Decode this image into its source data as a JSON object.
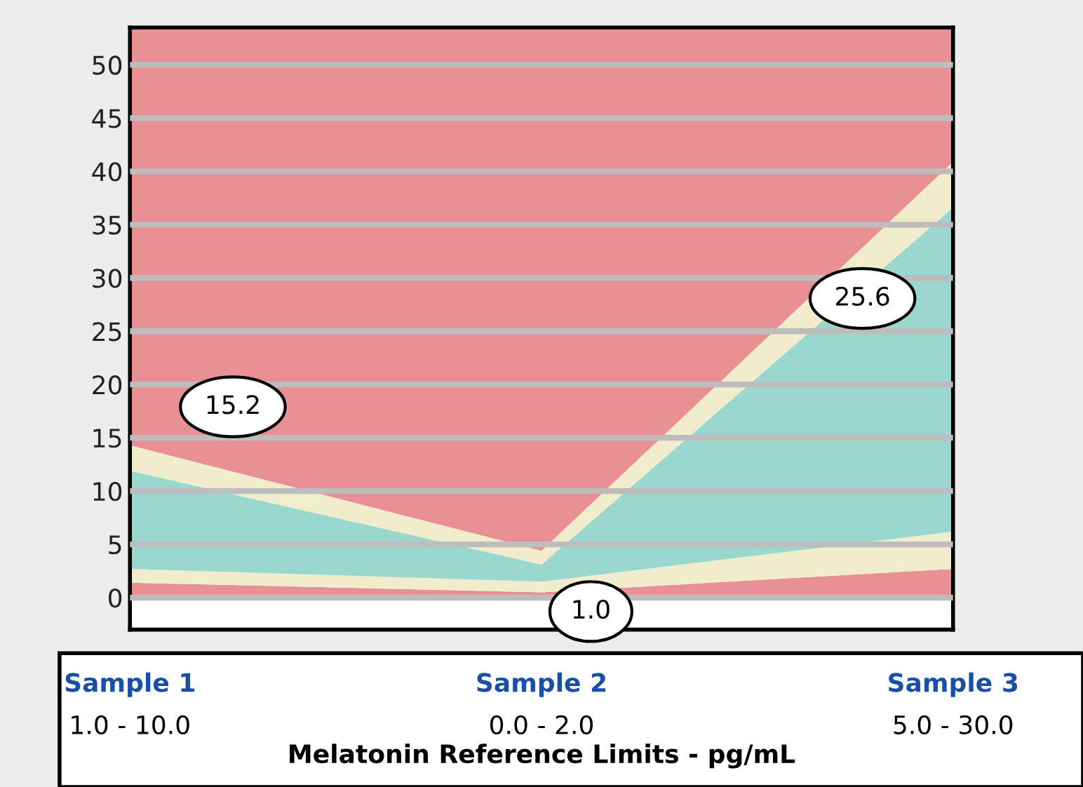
{
  "chart_data": {
    "type": "area",
    "stacked": true,
    "categories": [
      "Sample 1",
      "Sample 2",
      "Sample 3"
    ],
    "xlabel": "Melatonin Reference Limits - pg/mL",
    "series": [
      {
        "color": "#e99095",
        "values": [
          1.4,
          0.5,
          2.7
        ]
      },
      {
        "color": "#efedcb",
        "values": [
          1.3,
          1.0,
          3.5
        ]
      },
      {
        "color": "#9ad8cf",
        "values": [
          9.2,
          1.6,
          30.4
        ]
      },
      {
        "color": "#efedcb",
        "values": [
          2.4,
          1.3,
          4.3
        ]
      },
      {
        "color": "#e99095",
        "values": [
          39.2,
          49.1,
          12.6
        ]
      }
    ],
    "ylim": [
      -3,
      53.5
    ],
    "yticks": [
      0,
      5,
      10,
      15,
      20,
      25,
      30,
      35,
      40,
      45,
      50
    ],
    "grid": "y",
    "legend": false,
    "annotations": [
      "15.2",
      "1.0",
      "25.6",
      "1.0 - 10.0",
      "0.0 - 2.0",
      "5.0 - 30.0"
    ]
  }
}
